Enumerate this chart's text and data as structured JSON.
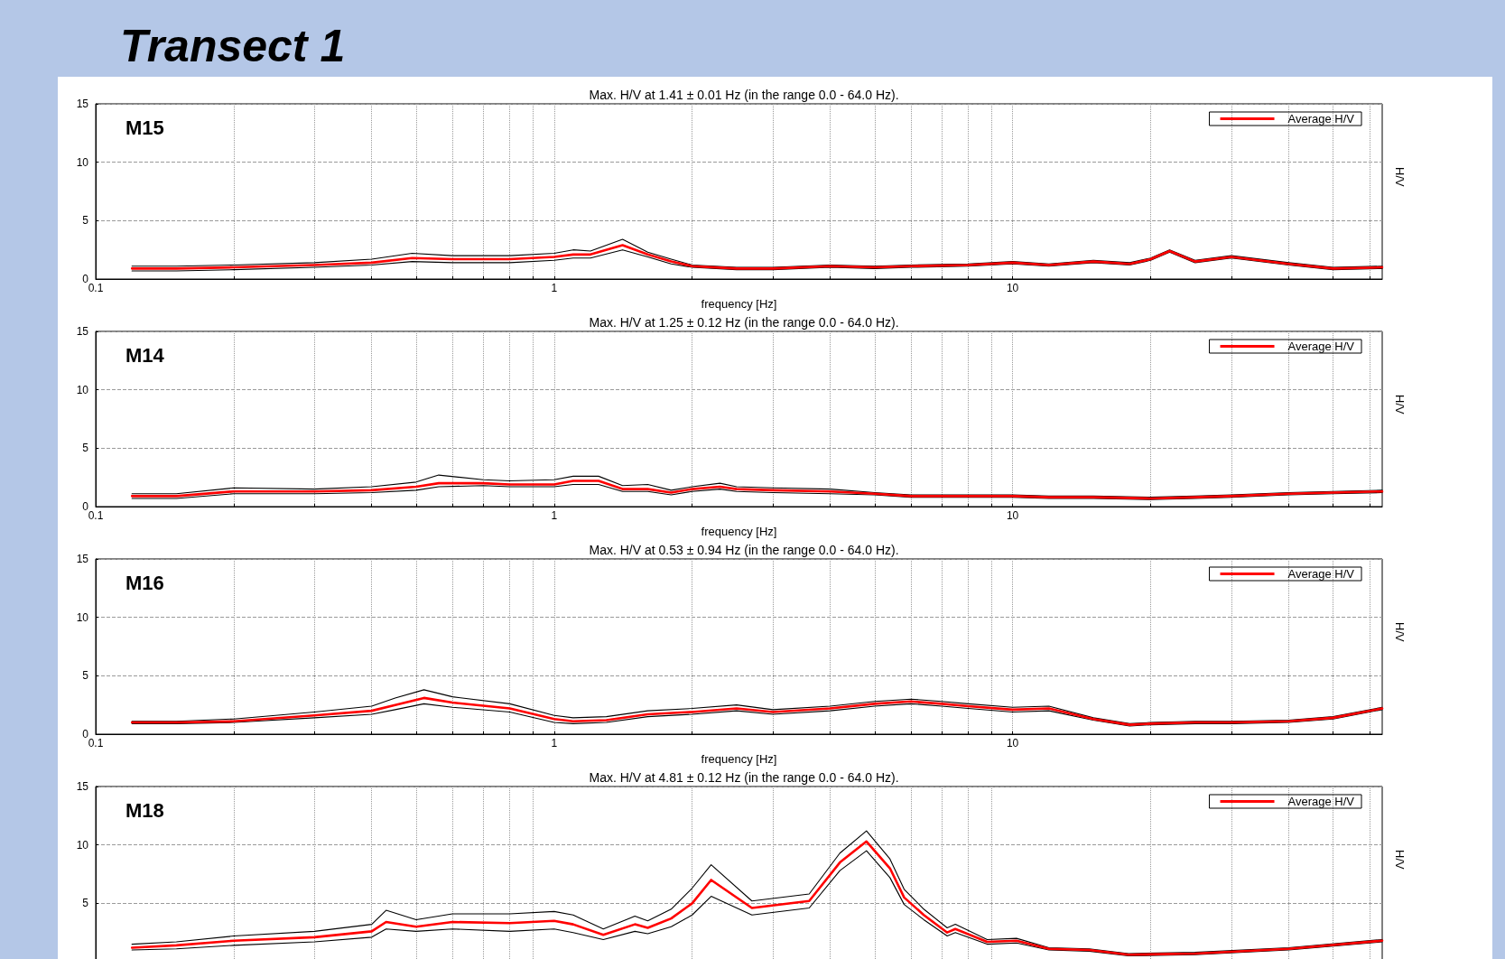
{
  "chart_data": [
    {
      "type": "line",
      "title": "Max. H/V at 1.41 ± 0.01 Hz (in the range 0.0 - 64.0 Hz).",
      "xlabel": "frequency [Hz]",
      "ylabel": "H/V",
      "annotations": [
        "M15",
        "Transect 1"
      ],
      "log": "x",
      "grid": true,
      "legend": "top right",
      "marker": "none",
      "line_style": "solid",
      "xlim": [
        0.1,
        64
      ],
      "ylim": [
        0,
        15
      ],
      "yticks": [
        0,
        5,
        10,
        15
      ],
      "xticks": [
        0.1,
        {
          "value": 0.2,
          "label": null
        },
        {
          "value": 0.3,
          "label": null
        },
        {
          "value": 0.4,
          "label": null
        },
        {
          "value": 0.5,
          "label": null
        },
        {
          "value": 0.6,
          "label": null
        },
        {
          "value": 0.7,
          "label": null
        },
        {
          "value": 0.8,
          "label": null
        },
        {
          "value": 0.9,
          "label": null
        },
        1,
        {
          "value": 2,
          "label": null
        },
        {
          "value": 3,
          "label": null
        },
        {
          "value": 4,
          "label": null
        },
        {
          "value": 5,
          "label": null
        },
        {
          "value": 6,
          "label": null
        },
        {
          "value": 7,
          "label": null
        },
        {
          "value": 8,
          "label": null
        },
        {
          "value": 9,
          "label": null
        },
        10,
        {
          "value": 20,
          "label": null
        },
        {
          "value": 30,
          "label": null
        },
        {
          "value": 40,
          "label": null
        },
        {
          "value": 50,
          "label": null
        },
        {
          "value": 60,
          "label": null
        }
      ],
      "x": [
        0.12,
        0.15,
        0.2,
        0.3,
        0.4,
        0.49,
        0.6,
        0.8,
        1,
        1.1,
        1.2,
        1.41,
        1.6,
        1.8,
        2,
        2.5,
        3,
        4,
        5,
        6,
        8,
        10,
        12,
        15,
        18,
        20,
        22,
        25,
        30,
        40,
        50,
        64
      ],
      "series": [
        {
          "color": "#000000",
          "values": [
            1.1,
            1.1,
            1.2,
            1.4,
            1.7,
            2.2,
            2.0,
            2.0,
            2.2,
            2.5,
            2.4,
            3.4,
            2.3,
            1.7,
            1.2,
            1.0,
            1.0,
            1.2,
            1.1,
            1.2,
            1.3,
            1.5,
            1.3,
            1.6,
            1.4,
            1.8,
            2.5,
            1.6,
            2.0,
            1.4,
            1.0,
            1.1
          ]
        },
        {
          "color": "#000000",
          "values": [
            0.7,
            0.7,
            0.8,
            1.0,
            1.2,
            1.5,
            1.4,
            1.4,
            1.6,
            1.8,
            1.8,
            2.5,
            1.9,
            1.3,
            1.0,
            0.8,
            0.8,
            1.0,
            0.9,
            1.0,
            1.1,
            1.3,
            1.1,
            1.4,
            1.2,
            1.6,
            2.3,
            1.4,
            1.8,
            1.2,
            0.8,
            0.9
          ]
        },
        {
          "name": "Average H/V",
          "color": "#ff0000",
          "values": [
            0.9,
            0.9,
            1.0,
            1.2,
            1.4,
            1.8,
            1.7,
            1.7,
            1.9,
            2.1,
            2.1,
            2.9,
            2.1,
            1.5,
            1.1,
            0.9,
            0.9,
            1.1,
            1.0,
            1.1,
            1.2,
            1.4,
            1.2,
            1.5,
            1.3,
            1.7,
            2.4,
            1.5,
            1.9,
            1.3,
            0.9,
            1.0
          ]
        }
      ]
    },
    {
      "type": "line",
      "title": "Max. H/V at 1.25 ± 0.12 Hz (in the range 0.0 - 64.0 Hz).",
      "xlabel": "frequency [Hz]",
      "ylabel": "H/V",
      "annotations": [
        "M14"
      ],
      "log": "x",
      "grid": true,
      "legend": "top right",
      "marker": "none",
      "line_style": "solid",
      "xlim": [
        0.1,
        64
      ],
      "ylim": [
        0,
        15
      ],
      "yticks": [
        0,
        5,
        10,
        15
      ],
      "xticks": [
        0.1,
        {
          "value": 0.2,
          "label": null
        },
        {
          "value": 0.3,
          "label": null
        },
        {
          "value": 0.4,
          "label": null
        },
        {
          "value": 0.5,
          "label": null
        },
        {
          "value": 0.6,
          "label": null
        },
        {
          "value": 0.7,
          "label": null
        },
        {
          "value": 0.8,
          "label": null
        },
        {
          "value": 0.9,
          "label": null
        },
        1,
        {
          "value": 2,
          "label": null
        },
        {
          "value": 3,
          "label": null
        },
        {
          "value": 4,
          "label": null
        },
        {
          "value": 5,
          "label": null
        },
        {
          "value": 6,
          "label": null
        },
        {
          "value": 7,
          "label": null
        },
        {
          "value": 8,
          "label": null
        },
        {
          "value": 9,
          "label": null
        },
        10,
        {
          "value": 20,
          "label": null
        },
        {
          "value": 30,
          "label": null
        },
        {
          "value": 40,
          "label": null
        },
        {
          "value": 50,
          "label": null
        },
        {
          "value": 60,
          "label": null
        }
      ],
      "x": [
        0.12,
        0.15,
        0.2,
        0.3,
        0.4,
        0.5,
        0.56,
        0.7,
        0.8,
        1,
        1.1,
        1.25,
        1.41,
        1.6,
        1.8,
        2,
        2.3,
        2.5,
        3,
        4,
        5,
        6,
        8,
        10,
        12,
        15,
        20,
        25,
        30,
        40,
        50,
        64
      ],
      "series": [
        {
          "color": "#000000",
          "values": [
            1.1,
            1.1,
            1.6,
            1.5,
            1.7,
            2.1,
            2.7,
            2.3,
            2.2,
            2.3,
            2.6,
            2.6,
            1.8,
            1.9,
            1.4,
            1.7,
            2.0,
            1.7,
            1.6,
            1.5,
            1.2,
            1.0,
            1.0,
            1.0,
            0.9,
            0.9,
            0.8,
            0.9,
            1.0,
            1.2,
            1.3,
            1.4
          ]
        },
        {
          "color": "#000000",
          "values": [
            0.7,
            0.7,
            1.1,
            1.1,
            1.2,
            1.4,
            1.7,
            1.8,
            1.7,
            1.7,
            1.9,
            1.9,
            1.3,
            1.3,
            1.0,
            1.3,
            1.5,
            1.3,
            1.2,
            1.1,
            1.0,
            0.8,
            0.8,
            0.8,
            0.7,
            0.7,
            0.6,
            0.7,
            0.8,
            1.0,
            1.1,
            1.2
          ]
        },
        {
          "name": "Average H/V",
          "color": "#ff0000",
          "values": [
            0.9,
            0.9,
            1.3,
            1.3,
            1.4,
            1.7,
            2.0,
            2.0,
            1.9,
            1.9,
            2.2,
            2.2,
            1.5,
            1.5,
            1.2,
            1.5,
            1.7,
            1.5,
            1.4,
            1.3,
            1.1,
            0.9,
            0.9,
            0.9,
            0.8,
            0.8,
            0.7,
            0.8,
            0.9,
            1.1,
            1.2,
            1.3
          ]
        }
      ]
    },
    {
      "type": "line",
      "title": "Max. H/V at 0.53 ± 0.94 Hz (in the range 0.0 - 64.0 Hz).",
      "xlabel": "frequency [Hz]",
      "ylabel": "H/V",
      "annotations": [
        "M16"
      ],
      "log": "x",
      "grid": true,
      "legend": "top right",
      "marker": "none",
      "line_style": "solid",
      "xlim": [
        0.1,
        64
      ],
      "ylim": [
        0,
        15
      ],
      "yticks": [
        0,
        5,
        10,
        15
      ],
      "xticks": [
        0.1,
        {
          "value": 0.2,
          "label": null
        },
        {
          "value": 0.3,
          "label": null
        },
        {
          "value": 0.4,
          "label": null
        },
        {
          "value": 0.5,
          "label": null
        },
        {
          "value": 0.6,
          "label": null
        },
        {
          "value": 0.7,
          "label": null
        },
        {
          "value": 0.8,
          "label": null
        },
        {
          "value": 0.9,
          "label": null
        },
        1,
        {
          "value": 2,
          "label": null
        },
        {
          "value": 3,
          "label": null
        },
        {
          "value": 4,
          "label": null
        },
        {
          "value": 5,
          "label": null
        },
        {
          "value": 6,
          "label": null
        },
        {
          "value": 7,
          "label": null
        },
        {
          "value": 8,
          "label": null
        },
        {
          "value": 9,
          "label": null
        },
        10,
        {
          "value": 20,
          "label": null
        },
        {
          "value": 30,
          "label": null
        },
        {
          "value": 40,
          "label": null
        },
        {
          "value": 50,
          "label": null
        },
        {
          "value": 60,
          "label": null
        }
      ],
      "x": [
        0.12,
        0.15,
        0.2,
        0.3,
        0.4,
        0.45,
        0.52,
        0.6,
        0.8,
        1,
        1.1,
        1.3,
        1.6,
        2,
        2.5,
        3,
        4,
        5,
        6,
        7,
        8,
        10,
        12,
        15,
        18,
        20,
        25,
        30,
        40,
        50,
        64
      ],
      "series": [
        {
          "color": "#000000",
          "values": [
            1.1,
            1.1,
            1.3,
            1.9,
            2.4,
            3.1,
            3.8,
            3.2,
            2.6,
            1.6,
            1.4,
            1.5,
            2.0,
            2.2,
            2.5,
            2.1,
            2.4,
            2.8,
            3.0,
            2.8,
            2.6,
            2.3,
            2.4,
            1.4,
            0.9,
            1.0,
            1.1,
            1.1,
            1.2,
            1.5,
            2.3
          ]
        },
        {
          "color": "#000000",
          "values": [
            0.9,
            0.9,
            1.0,
            1.4,
            1.7,
            2.1,
            2.6,
            2.3,
            1.9,
            1.0,
            0.9,
            1.0,
            1.5,
            1.7,
            2.0,
            1.7,
            2.0,
            2.4,
            2.6,
            2.4,
            2.2,
            1.9,
            2.0,
            1.2,
            0.7,
            0.8,
            0.9,
            0.9,
            1.0,
            1.3,
            2.1
          ]
        },
        {
          "name": "Average H/V",
          "color": "#ff0000",
          "values": [
            1.0,
            1.0,
            1.1,
            1.6,
            2.0,
            2.5,
            3.1,
            2.7,
            2.2,
            1.3,
            1.1,
            1.2,
            1.7,
            1.9,
            2.2,
            1.9,
            2.2,
            2.6,
            2.8,
            2.6,
            2.4,
            2.1,
            2.2,
            1.3,
            0.8,
            0.9,
            1.0,
            1.0,
            1.1,
            1.4,
            2.2
          ]
        }
      ]
    },
    {
      "type": "line",
      "title": "Max. H/V at 4.81 ± 0.12 Hz (in the range 0.0 - 64.0 Hz).",
      "ylabel": "H/V",
      "annotations": [
        "M18"
      ],
      "log": "x",
      "grid": true,
      "legend": "top right",
      "marker": "none",
      "line_style": "solid",
      "tick_labels": "y",
      "xlim": [
        0.1,
        64
      ],
      "ylim": [
        0,
        15
      ],
      "yticks": [
        5,
        10,
        15
      ],
      "xticks": [
        {
          "value": 0.2,
          "label": null
        },
        {
          "value": 0.3,
          "label": null
        },
        {
          "value": 0.4,
          "label": null
        },
        {
          "value": 0.5,
          "label": null
        },
        {
          "value": 0.6,
          "label": null
        },
        {
          "value": 0.7,
          "label": null
        },
        {
          "value": 0.8,
          "label": null
        },
        {
          "value": 0.9,
          "label": null
        },
        {
          "value": 2,
          "label": null
        },
        {
          "value": 3,
          "label": null
        },
        {
          "value": 4,
          "label": null
        },
        {
          "value": 5,
          "label": null
        },
        {
          "value": 6,
          "label": null
        },
        {
          "value": 7,
          "label": null
        },
        {
          "value": 8,
          "label": null
        },
        {
          "value": 9,
          "label": null
        },
        {
          "value": 20,
          "label": null
        },
        {
          "value": 30,
          "label": null
        },
        {
          "value": 40,
          "label": null
        },
        {
          "value": 50,
          "label": null
        },
        {
          "value": 60,
          "label": null
        }
      ],
      "x": [
        0.12,
        0.15,
        0.2,
        0.3,
        0.4,
        0.43,
        0.5,
        0.6,
        0.8,
        1,
        1.1,
        1.28,
        1.5,
        1.6,
        1.8,
        2,
        2.2,
        2.7,
        3.6,
        4.2,
        4.8,
        5.4,
        5.8,
        6.4,
        7.2,
        7.5,
        8.8,
        10.2,
        12,
        14.7,
        17.9,
        25,
        40,
        64
      ],
      "series": [
        {
          "color": "#000000",
          "values": [
            1.5,
            1.7,
            2.2,
            2.6,
            3.2,
            4.4,
            3.6,
            4.1,
            4.1,
            4.3,
            4.0,
            2.8,
            3.9,
            3.5,
            4.5,
            6.3,
            8.3,
            5.2,
            5.8,
            9.3,
            11.2,
            8.8,
            6.2,
            4.5,
            2.9,
            3.2,
            1.9,
            2.0,
            1.2,
            1.1,
            0.7,
            0.8,
            1.2,
            1.9
          ]
        },
        {
          "color": "#000000",
          "values": [
            1.0,
            1.1,
            1.4,
            1.7,
            2.1,
            2.8,
            2.6,
            2.8,
            2.6,
            2.8,
            2.5,
            1.9,
            2.6,
            2.4,
            3.0,
            4.0,
            5.6,
            4.0,
            4.6,
            7.8,
            9.5,
            7.2,
            4.9,
            3.6,
            2.2,
            2.5,
            1.5,
            1.6,
            1.0,
            0.9,
            0.5,
            0.6,
            1.0,
            1.7
          ]
        },
        {
          "name": "Average H/V",
          "color": "#ff0000",
          "values": [
            1.2,
            1.4,
            1.8,
            2.1,
            2.6,
            3.4,
            3.0,
            3.4,
            3.3,
            3.5,
            3.2,
            2.3,
            3.2,
            2.9,
            3.7,
            5.0,
            7.0,
            4.6,
            5.2,
            8.5,
            10.3,
            8.0,
            5.5,
            4.0,
            2.5,
            2.8,
            1.7,
            1.8,
            1.1,
            1.0,
            0.6,
            0.7,
            1.1,
            1.8
          ]
        }
      ]
    }
  ]
}
